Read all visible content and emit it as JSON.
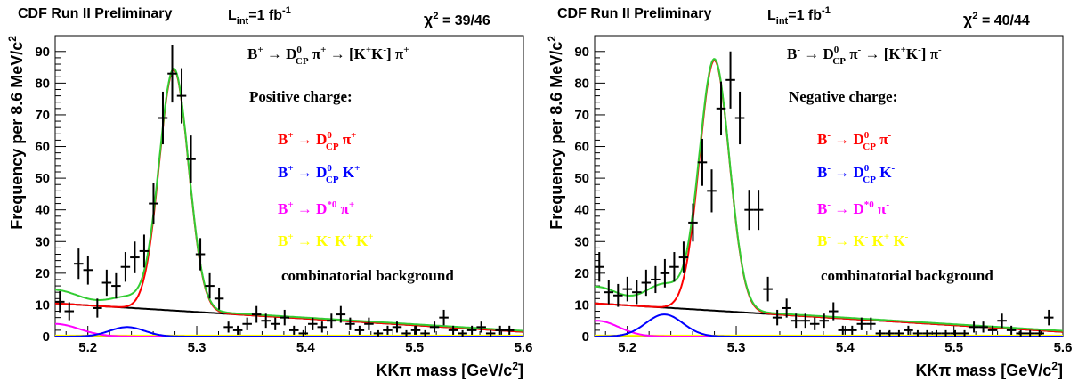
{
  "chart_data": [
    {
      "type": "scatter",
      "header": {
        "label": "CDF Run II Preliminary",
        "lumi_label": "L",
        "lumi_sub": "int",
        "lumi_value": "=1 fb",
        "lumi_sup": "-1",
        "chi2_label": "χ",
        "chi2_sup": "2",
        "chi2_value": " = 39/46"
      },
      "xlabel": "KKπ mass [GeV/c",
      "xlabel_sup": "2",
      "xlabel_end": "]",
      "ylabel": "Frequency per 8.6 MeV/c",
      "ylabel_sup": "2",
      "xlim": [
        5.17,
        5.6
      ],
      "ylim": [
        0,
        95
      ],
      "x_ticks": [
        "5.2",
        "5.3",
        "5.4",
        "5.5",
        "5.6"
      ],
      "y_ticks": [
        "0",
        "10",
        "20",
        "30",
        "40",
        "50",
        "60",
        "70",
        "80",
        "90"
      ],
      "data": {
        "x": [
          5.1743,
          5.1829,
          5.1915,
          5.2001,
          5.2087,
          5.2173,
          5.2259,
          5.2345,
          5.2431,
          5.2517,
          5.2603,
          5.2689,
          5.2775,
          5.2861,
          5.2947,
          5.3033,
          5.3119,
          5.3205,
          5.3291,
          5.3377,
          5.3463,
          5.3549,
          5.3635,
          5.3721,
          5.3807,
          5.3893,
          5.3979,
          5.4065,
          5.4151,
          5.4237,
          5.4323,
          5.4409,
          5.4495,
          5.4581,
          5.4667,
          5.4753,
          5.4839,
          5.4925,
          5.5011,
          5.5097,
          5.5183,
          5.5269,
          5.5355,
          5.5441,
          5.5527,
          5.5613,
          5.5699,
          5.5785,
          5.5871
        ],
        "y": [
          11,
          8,
          23,
          21,
          9,
          17,
          16,
          22,
          25,
          27,
          42,
          69,
          83,
          76,
          56,
          26,
          16,
          12,
          3,
          2,
          4,
          7,
          5,
          4,
          6,
          2,
          1,
          4,
          3,
          5,
          7,
          4,
          2,
          4,
          1,
          2,
          3,
          1,
          2,
          1,
          3,
          6,
          2,
          1,
          2,
          3,
          1,
          2,
          2
        ]
      },
      "legend_title": "Positive charge:",
      "decay": {
        "main": "B",
        "main_sup": "+",
        "arrow": " → ",
        "d": "D",
        "d_sup": "0",
        "d_sub": "CP",
        "pi": " π",
        "pi_sup": "+",
        "arrow2": " → [K",
        "k1_sup": "+",
        "k2": "K",
        "k2_sup": "-",
        "end": "] π",
        "end_sup": "+"
      },
      "legend": [
        {
          "name_parts": [
            "B",
            "+",
            " → D",
            "0",
            "CP",
            " π",
            "+"
          ],
          "color": "#ff0000"
        },
        {
          "name_parts": [
            "B",
            "+",
            " → D",
            "0",
            "CP",
            " K",
            "+"
          ],
          "color": "#0000ff"
        },
        {
          "name_parts": [
            "B",
            "+",
            " → D",
            "*0",
            "",
            " π",
            "+"
          ],
          "color": "#ff00ff"
        },
        {
          "name_parts": [
            "B",
            "+",
            " → K",
            "-",
            "",
            " K",
            "+",
            " K",
            "+"
          ],
          "color": "#ffff00"
        },
        {
          "name": "combinatorial background",
          "color": "#000000"
        }
      ],
      "curves": {
        "signal_amp": 76,
        "signal_mean": 5.279,
        "signal_sigma": 0.0135,
        "dk_amp": 3.0,
        "dk_mean": 5.236,
        "dk_sigma": 0.016,
        "dstar_amp": 4.0,
        "dstar_mean": 5.17,
        "dstar_sigma": 0.022,
        "bg_at_min": 10.5,
        "bg_at_max": 1.5
      }
    },
    {
      "type": "scatter",
      "header": {
        "label": "CDF Run II Preliminary",
        "lumi_label": "L",
        "lumi_sub": "int",
        "lumi_value": "=1 fb",
        "lumi_sup": "-1",
        "chi2_label": "χ",
        "chi2_sup": "2",
        "chi2_value": " = 40/44"
      },
      "xlabel": "KKπ mass [GeV/c",
      "xlabel_sup": "2",
      "xlabel_end": "]",
      "ylabel": "Frequency per 8.6 MeV/c",
      "ylabel_sup": "2",
      "xlim": [
        5.17,
        5.6
      ],
      "ylim": [
        0,
        95
      ],
      "x_ticks": [
        "5.2",
        "5.3",
        "5.4",
        "5.5",
        "5.6"
      ],
      "y_ticks": [
        "0",
        "10",
        "20",
        "30",
        "40",
        "50",
        "60",
        "70",
        "80",
        "90"
      ],
      "data": {
        "x": [
          5.1743,
          5.1829,
          5.1915,
          5.2001,
          5.2087,
          5.2173,
          5.2259,
          5.2345,
          5.2431,
          5.2517,
          5.2603,
          5.2689,
          5.2775,
          5.2861,
          5.2947,
          5.3033,
          5.3119,
          5.3205,
          5.3291,
          5.3377,
          5.3463,
          5.3549,
          5.3635,
          5.3721,
          5.3807,
          5.3893,
          5.3979,
          5.4065,
          5.4151,
          5.4237,
          5.4323,
          5.4409,
          5.4495,
          5.4581,
          5.4667,
          5.4753,
          5.4839,
          5.4925,
          5.5011,
          5.5097,
          5.5183,
          5.5269,
          5.5355,
          5.5441,
          5.5527,
          5.5613,
          5.5699,
          5.5785,
          5.5871
        ],
        "y": [
          22,
          14,
          13,
          15,
          14,
          17,
          18,
          20,
          22,
          25,
          36,
          55,
          46,
          72,
          81,
          69,
          40,
          40,
          15,
          6,
          9,
          5,
          5,
          4,
          5,
          8,
          2,
          2,
          4,
          4,
          1,
          1,
          1,
          2,
          1,
          1,
          1,
          1,
          1,
          1,
          3,
          3,
          2,
          5,
          2,
          1,
          1,
          1,
          6
        ]
      },
      "legend_title": "Negative charge:",
      "decay": {
        "main": "B",
        "main_sup": "-",
        "arrow": " → ",
        "d": "D",
        "d_sup": "0",
        "d_sub": "CP",
        "pi": " π",
        "pi_sup": "-",
        "arrow2": " → [K",
        "k1_sup": "+",
        "k2": "K",
        "k2_sup": "-",
        "end": "] π",
        "end_sup": "-"
      },
      "legend": [
        {
          "name_parts": [
            "B",
            "-",
            " → D",
            "0",
            "CP",
            " π",
            "-"
          ],
          "color": "#ff0000"
        },
        {
          "name_parts": [
            "B",
            "-",
            " → D",
            "0",
            "CP",
            " K",
            "-"
          ],
          "color": "#0000ff"
        },
        {
          "name_parts": [
            "B",
            "-",
            " → D",
            "*0",
            "",
            " π",
            "-"
          ],
          "color": "#ff00ff"
        },
        {
          "name_parts": [
            "B",
            "-",
            " → K",
            "-",
            "",
            " K",
            "+",
            " K",
            "-"
          ],
          "color": "#ffff00"
        },
        {
          "name": "combinatorial background",
          "color": "#000000"
        }
      ],
      "curves": {
        "signal_amp": 79,
        "signal_mean": 5.28,
        "signal_sigma": 0.0138,
        "dk_amp": 7.0,
        "dk_mean": 5.234,
        "dk_sigma": 0.017,
        "dstar_amp": 5.0,
        "dstar_mean": 5.172,
        "dstar_sigma": 0.02,
        "bg_at_min": 10.5,
        "bg_at_max": 1.5
      }
    }
  ]
}
